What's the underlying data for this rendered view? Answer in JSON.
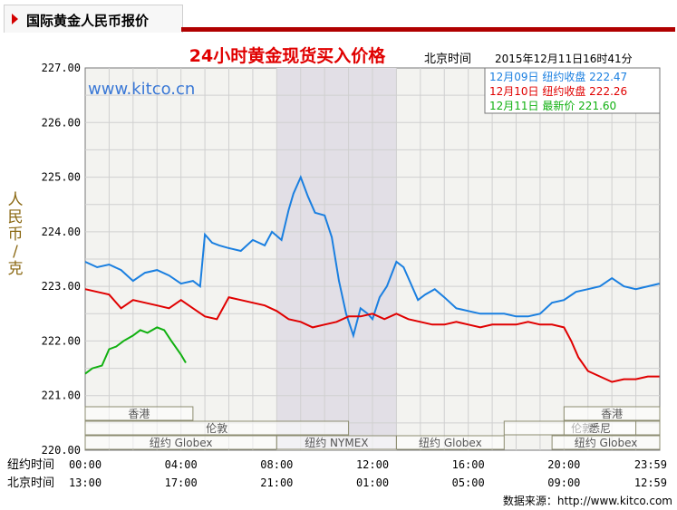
{
  "header": {
    "title": "国际黄金人民币报价"
  },
  "chart_data": {
    "type": "line",
    "title": "24小时黄金现货买入价格",
    "timestamp_label": "北京时间",
    "timestamp": "2015年12月11日16时41分",
    "ylabel": "人民币/克",
    "watermark": "www.kitco.cn",
    "source_text": "数据来源：http://www.kitco.com",
    "ylim": [
      220,
      227
    ],
    "xlim": [
      0,
      24
    ],
    "y_ticks": [
      "220.00",
      "221.00",
      "222.00",
      "223.00",
      "224.00",
      "225.00",
      "226.00",
      "227.00"
    ],
    "x_ticks": [
      0,
      4,
      8,
      12,
      16,
      20,
      23.98
    ],
    "x_row_labels": [
      "纽约时间",
      "北京时间"
    ],
    "ny_time_labels": [
      "00:00",
      "04:00",
      "08:00",
      "12:00",
      "16:00",
      "20:00",
      "23:59"
    ],
    "bj_time_labels": [
      "13:00",
      "17:00",
      "21:00",
      "01:00",
      "05:00",
      "09:00",
      "12:59"
    ],
    "shaded_range": [
      8,
      13
    ],
    "sessions": [
      {
        "label": "香港",
        "row": 1,
        "range": [
          0,
          4.5
        ]
      },
      {
        "label": "香港",
        "row": 1,
        "range": [
          20,
          24
        ]
      },
      {
        "label": "伦敦",
        "row": 2,
        "range": [
          0,
          11
        ]
      },
      {
        "label": "伦敦",
        "row": 2,
        "range": [
          17.5,
          24
        ]
      },
      {
        "label": "悉尼",
        "row": 2,
        "range": [
          20,
          23
        ]
      },
      {
        "label": "纽约 Globex",
        "row": 3,
        "range": [
          0,
          8
        ]
      },
      {
        "label": "纽约 NYMEX",
        "row": 3,
        "range": [
          8,
          13
        ]
      },
      {
        "label": "纽约 Globex",
        "row": 3,
        "range": [
          13,
          17.5
        ]
      },
      {
        "label": "纽约 Globex",
        "row": 3,
        "range": [
          19.5,
          24
        ]
      }
    ],
    "series": [
      {
        "name": "12月09日 纽约收盘 222.47",
        "color": "#1a7fe0",
        "x": [
          0,
          0.5,
          1,
          1.5,
          2,
          2.5,
          3,
          3.5,
          4,
          4.5,
          4.8,
          5,
          5.3,
          5.6,
          6,
          6.5,
          7,
          7.5,
          7.8,
          8.2,
          8.5,
          8.7,
          9,
          9.3,
          9.6,
          10,
          10.3,
          10.6,
          10.9,
          11.2,
          11.5,
          11.8,
          12,
          12.3,
          12.6,
          13,
          13.3,
          13.6,
          13.9,
          14.2,
          14.6,
          15,
          15.5,
          16,
          16.5,
          17,
          17.5,
          18,
          18.5,
          19,
          19.5,
          20,
          20.5,
          21,
          21.5,
          22,
          22.5,
          23,
          23.5,
          23.98
        ],
        "y": [
          223.45,
          223.35,
          223.4,
          223.3,
          223.1,
          223.25,
          223.3,
          223.2,
          223.05,
          223.1,
          223.0,
          223.95,
          223.8,
          223.75,
          223.7,
          223.65,
          223.85,
          223.75,
          224.0,
          223.85,
          224.4,
          224.7,
          225.0,
          224.65,
          224.35,
          224.3,
          223.9,
          223.1,
          222.5,
          222.1,
          222.6,
          222.5,
          222.4,
          222.8,
          223.0,
          223.45,
          223.35,
          223.05,
          222.75,
          222.85,
          222.95,
          222.8,
          222.6,
          222.55,
          222.5,
          222.5,
          222.5,
          222.45,
          222.45,
          222.5,
          222.7,
          222.75,
          222.9,
          222.95,
          223.0,
          223.15,
          223.0,
          222.95,
          223.0,
          223.05
        ]
      },
      {
        "name": "12月10日 纽约收盘 222.26",
        "color": "#e00000",
        "x": [
          0,
          0.5,
          1,
          1.5,
          2,
          2.5,
          3,
          3.5,
          4,
          4.5,
          5,
          5.5,
          6,
          6.5,
          7,
          7.5,
          8,
          8.5,
          9,
          9.5,
          10,
          10.5,
          11,
          11.5,
          12,
          12.5,
          13,
          13.5,
          14,
          14.5,
          15,
          15.5,
          16,
          16.5,
          17,
          17.5,
          18,
          18.5,
          19,
          19.5,
          20,
          20.3,
          20.6,
          21,
          21.5,
          22,
          22.5,
          23,
          23.5,
          23.98
        ],
        "y": [
          222.95,
          222.9,
          222.85,
          222.6,
          222.75,
          222.7,
          222.65,
          222.6,
          222.75,
          222.6,
          222.45,
          222.4,
          222.8,
          222.75,
          222.7,
          222.65,
          222.55,
          222.4,
          222.35,
          222.25,
          222.3,
          222.35,
          222.45,
          222.45,
          222.5,
          222.4,
          222.5,
          222.4,
          222.35,
          222.3,
          222.3,
          222.35,
          222.3,
          222.25,
          222.3,
          222.3,
          222.3,
          222.35,
          222.3,
          222.3,
          222.25,
          222.0,
          221.7,
          221.45,
          221.35,
          221.25,
          221.3,
          221.3,
          221.35,
          221.35
        ]
      },
      {
        "name": "12月11日 最新价 221.60",
        "color": "#10b010",
        "x": [
          0,
          0.3,
          0.7,
          1,
          1.3,
          1.6,
          2,
          2.3,
          2.6,
          3,
          3.3,
          3.6,
          4,
          4.2
        ],
        "y": [
          221.4,
          221.5,
          221.55,
          221.85,
          221.9,
          222.0,
          222.1,
          222.2,
          222.15,
          222.25,
          222.2,
          222.0,
          221.75,
          221.6
        ]
      }
    ]
  }
}
